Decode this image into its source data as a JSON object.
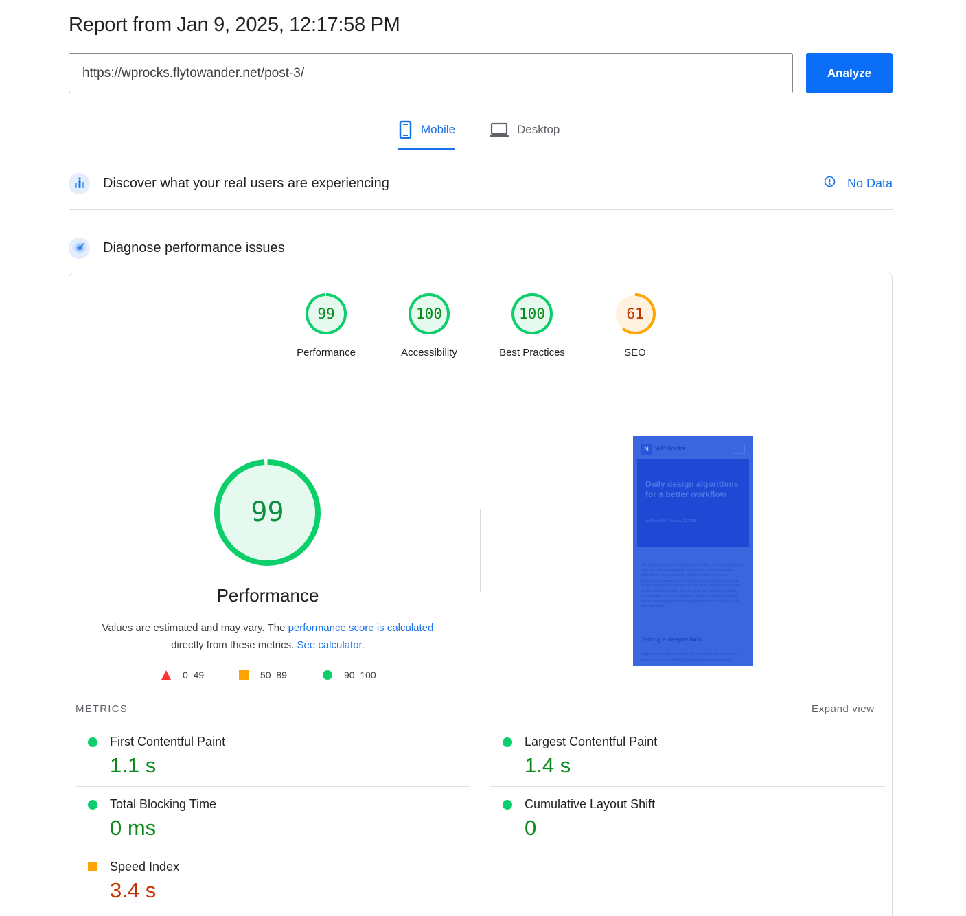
{
  "report_title": "Report from Jan 9, 2025, 12:17:58 PM",
  "url_input": {
    "value": "https://wprocks.flytowander.net/post-3/"
  },
  "analyze_label": "Analyze",
  "tabs": [
    {
      "label": "Mobile",
      "selected": true
    },
    {
      "label": "Desktop",
      "selected": false
    }
  ],
  "crux": {
    "title": "Discover what your real users are experiencing",
    "no_data": "No Data"
  },
  "diagnose": {
    "title": "Diagnose performance issues"
  },
  "categories": [
    {
      "label": "Performance",
      "score": "99",
      "color": "#0cce6b",
      "fraction": 0.99
    },
    {
      "label": "Accessibility",
      "score": "100",
      "color": "#0cce6b",
      "fraction": 1.0
    },
    {
      "label": "Best Practices",
      "score": "100",
      "color": "#0cce6b",
      "fraction": 1.0
    },
    {
      "label": "SEO",
      "score": "61",
      "color": "#ffa400",
      "fraction": 0.61
    }
  ],
  "performance": {
    "score": "99",
    "fraction": 0.99,
    "title": "Performance",
    "desc_pre": "Values are estimated and may vary. The ",
    "desc_link1": "performance score is calculated",
    "desc_mid": " directly from these metrics. ",
    "desc_link2": "See calculator",
    "desc_end": "."
  },
  "legend": [
    {
      "range": "0–49",
      "shape": "triangle",
      "color": "#ff3333"
    },
    {
      "range": "50–89",
      "shape": "square",
      "color": "#ffa400"
    },
    {
      "range": "90–100",
      "shape": "circle",
      "color": "#0cce6b"
    }
  ],
  "screenshot": {
    "brand": "WP Rocks",
    "logo": "N",
    "hero_title": "Daily design algorithms for a better workflow",
    "hero_meta": "by Chase Pol  /  February 18, 2021",
    "body": "The algorithm is used by health care providers to screen patients for “high-risk care management” intervention. Under this system, patients who have especially complex medical needs are automatically flagged by the algorithm. Once selected, they may receive additional care resources, like more attention from doctors. As the researchers note, the system is widely used around the United States, and for good reason. Extra benefits like dedicated nurses and more primary care appointments are costly for health care providers.",
    "subheading": "Taking a deeper look",
    "body2": "Apple saw its profit increased to $11.52 billion in its most recent quarter, on revenue of $58.3 billion that a raised, support a"
  },
  "metrics_label": "METRICS",
  "expand_view": "Expand view",
  "metrics": [
    {
      "name": "First Contentful Paint",
      "value": "1.1 s",
      "status": "good"
    },
    {
      "name": "Largest Contentful Paint",
      "value": "1.4 s",
      "status": "good"
    },
    {
      "name": "Total Blocking Time",
      "value": "0 ms",
      "status": "good"
    },
    {
      "name": "Cumulative Layout Shift",
      "value": "0",
      "status": "good"
    },
    {
      "name": "Speed Index",
      "value": "3.4 s",
      "status": "average"
    }
  ]
}
